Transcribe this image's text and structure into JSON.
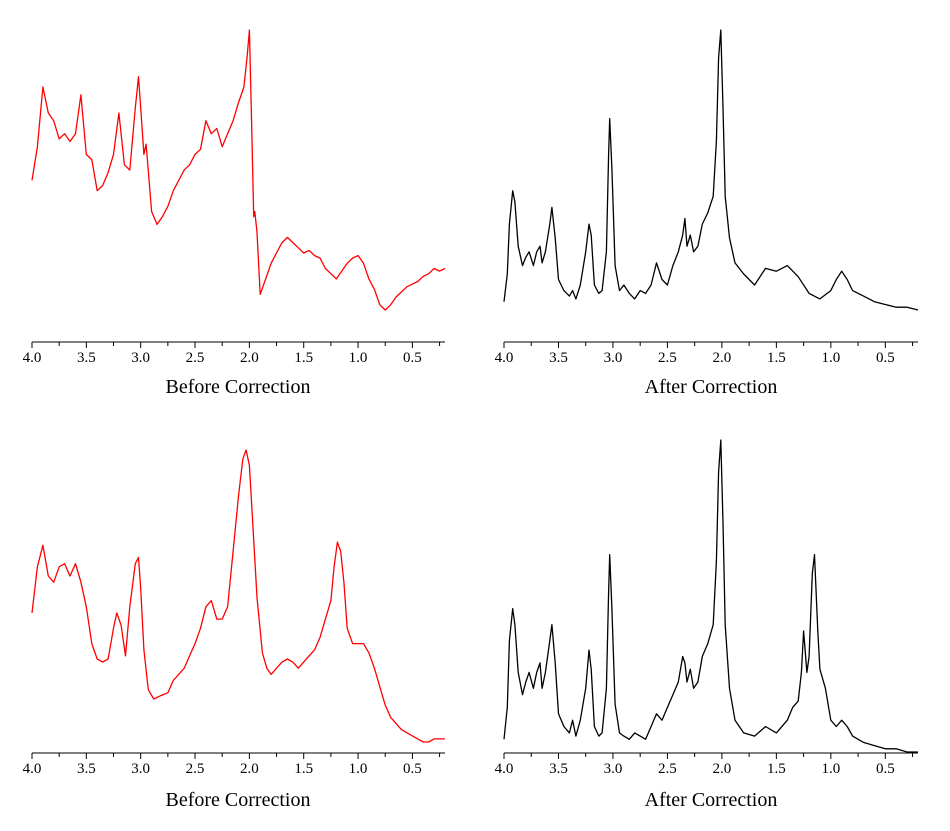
{
  "chart_data": [
    {
      "type": "line",
      "xlabel": "Before Correction",
      "ylabel": "",
      "xlim": [
        4.0,
        0.2
      ],
      "x_reversed": true,
      "xticks": [
        "4.0",
        "3.5",
        "3.0",
        "2.5",
        "2.0",
        "1.5",
        "1.0",
        "0.5"
      ],
      "y_axis_visible": false,
      "grid": false,
      "series": [
        {
          "color": "#ff0000",
          "x": [
            4.0,
            3.95,
            3.9,
            3.85,
            3.8,
            3.75,
            3.7,
            3.65,
            3.6,
            3.55,
            3.5,
            3.45,
            3.4,
            3.35,
            3.3,
            3.25,
            3.2,
            3.15,
            3.1,
            3.05,
            3.02,
            3.0,
            2.97,
            2.95,
            2.9,
            2.85,
            2.8,
            2.75,
            2.7,
            2.65,
            2.6,
            2.55,
            2.5,
            2.45,
            2.4,
            2.35,
            2.3,
            2.25,
            2.2,
            2.15,
            2.1,
            2.05,
            2.02,
            2.0,
            1.98,
            1.96,
            1.95,
            1.93,
            1.9,
            1.85,
            1.8,
            1.75,
            1.7,
            1.65,
            1.6,
            1.55,
            1.5,
            1.45,
            1.4,
            1.35,
            1.3,
            1.25,
            1.2,
            1.15,
            1.1,
            1.05,
            1.0,
            0.95,
            0.9,
            0.85,
            0.8,
            0.75,
            0.7,
            0.65,
            0.6,
            0.55,
            0.5,
            0.45,
            0.4,
            0.35,
            0.3,
            0.25,
            0.2
          ],
          "y": [
            0.62,
            0.75,
            0.98,
            0.88,
            0.85,
            0.78,
            0.8,
            0.77,
            0.8,
            0.95,
            0.72,
            0.7,
            0.58,
            0.6,
            0.65,
            0.72,
            0.88,
            0.68,
            0.66,
            0.9,
            1.02,
            0.9,
            0.72,
            0.76,
            0.5,
            0.45,
            0.48,
            0.52,
            0.58,
            0.62,
            0.66,
            0.68,
            0.72,
            0.74,
            0.85,
            0.8,
            0.82,
            0.75,
            0.8,
            0.85,
            0.92,
            0.98,
            1.1,
            1.2,
            0.86,
            0.48,
            0.5,
            0.42,
            0.18,
            0.24,
            0.3,
            0.34,
            0.38,
            0.4,
            0.38,
            0.36,
            0.34,
            0.35,
            0.33,
            0.32,
            0.28,
            0.26,
            0.24,
            0.27,
            0.3,
            0.32,
            0.33,
            0.3,
            0.24,
            0.2,
            0.14,
            0.12,
            0.14,
            0.17,
            0.19,
            0.21,
            0.22,
            0.23,
            0.25,
            0.26,
            0.28,
            0.27,
            0.28
          ]
        }
      ]
    },
    {
      "type": "line",
      "xlabel": "After Correction",
      "ylabel": "",
      "xlim": [
        4.0,
        0.2
      ],
      "x_reversed": true,
      "xticks": [
        "4.0",
        "3.5",
        "3.0",
        "2.5",
        "2.0",
        "1.5",
        "1.0",
        "0.5"
      ],
      "y_axis_visible": false,
      "grid": false,
      "series": [
        {
          "color": "#000000",
          "x": [
            4.0,
            3.97,
            3.95,
            3.92,
            3.9,
            3.87,
            3.83,
            3.8,
            3.77,
            3.73,
            3.7,
            3.67,
            3.65,
            3.62,
            3.58,
            3.56,
            3.53,
            3.5,
            3.45,
            3.4,
            3.37,
            3.34,
            3.3,
            3.25,
            3.22,
            3.2,
            3.17,
            3.13,
            3.1,
            3.06,
            3.04,
            3.03,
            3.01,
            2.98,
            2.94,
            2.9,
            2.85,
            2.8,
            2.75,
            2.7,
            2.65,
            2.6,
            2.55,
            2.5,
            2.45,
            2.4,
            2.36,
            2.34,
            2.32,
            2.29,
            2.26,
            2.22,
            2.18,
            2.13,
            2.08,
            2.05,
            2.03,
            2.01,
            1.99,
            1.97,
            1.93,
            1.88,
            1.8,
            1.7,
            1.6,
            1.5,
            1.4,
            1.3,
            1.2,
            1.1,
            1.0,
            0.95,
            0.9,
            0.85,
            0.8,
            0.7,
            0.6,
            0.5,
            0.4,
            0.3,
            0.2
          ],
          "y": [
            0.02,
            0.12,
            0.3,
            0.42,
            0.38,
            0.22,
            0.15,
            0.18,
            0.2,
            0.15,
            0.2,
            0.22,
            0.16,
            0.2,
            0.3,
            0.36,
            0.25,
            0.1,
            0.06,
            0.04,
            0.06,
            0.03,
            0.08,
            0.2,
            0.3,
            0.26,
            0.08,
            0.05,
            0.06,
            0.2,
            0.55,
            0.68,
            0.5,
            0.15,
            0.06,
            0.08,
            0.05,
            0.03,
            0.06,
            0.05,
            0.08,
            0.16,
            0.1,
            0.08,
            0.15,
            0.2,
            0.26,
            0.32,
            0.22,
            0.26,
            0.2,
            0.22,
            0.3,
            0.34,
            0.4,
            0.6,
            0.9,
            1.0,
            0.72,
            0.4,
            0.25,
            0.16,
            0.12,
            0.08,
            0.14,
            0.13,
            0.15,
            0.11,
            0.05,
            0.03,
            0.06,
            0.1,
            0.13,
            0.1,
            0.06,
            0.04,
            0.02,
            0.01,
            0.0,
            0.0,
            -0.01
          ]
        }
      ]
    },
    {
      "type": "line",
      "xlabel": "Before Correction",
      "ylabel": "",
      "xlim": [
        4.0,
        0.2
      ],
      "x_reversed": true,
      "xticks": [
        "4.0",
        "3.5",
        "3.0",
        "2.5",
        "2.0",
        "1.5",
        "1.0",
        "0.5"
      ],
      "y_axis_visible": false,
      "grid": false,
      "series": [
        {
          "color": "#ff0000",
          "x": [
            4.0,
            3.95,
            3.9,
            3.85,
            3.8,
            3.75,
            3.7,
            3.65,
            3.6,
            3.55,
            3.5,
            3.45,
            3.4,
            3.35,
            3.3,
            3.25,
            3.22,
            3.18,
            3.14,
            3.1,
            3.05,
            3.02,
            3.0,
            2.97,
            2.93,
            2.88,
            2.82,
            2.75,
            2.7,
            2.65,
            2.6,
            2.55,
            2.5,
            2.45,
            2.4,
            2.35,
            2.3,
            2.25,
            2.2,
            2.15,
            2.1,
            2.06,
            2.03,
            2.0,
            1.97,
            1.93,
            1.88,
            1.84,
            1.8,
            1.75,
            1.7,
            1.65,
            1.6,
            1.55,
            1.5,
            1.45,
            1.4,
            1.35,
            1.3,
            1.25,
            1.22,
            1.19,
            1.16,
            1.13,
            1.1,
            1.05,
            1.0,
            0.95,
            0.9,
            0.85,
            0.8,
            0.75,
            0.7,
            0.65,
            0.6,
            0.55,
            0.5,
            0.45,
            0.4,
            0.35,
            0.3,
            0.25,
            0.2
          ],
          "y": [
            0.4,
            0.55,
            0.62,
            0.52,
            0.5,
            0.55,
            0.56,
            0.52,
            0.56,
            0.5,
            0.42,
            0.3,
            0.25,
            0.24,
            0.25,
            0.35,
            0.4,
            0.36,
            0.26,
            0.42,
            0.56,
            0.58,
            0.48,
            0.28,
            0.15,
            0.12,
            0.13,
            0.14,
            0.18,
            0.2,
            0.22,
            0.26,
            0.3,
            0.35,
            0.42,
            0.44,
            0.38,
            0.38,
            0.42,
            0.6,
            0.78,
            0.9,
            0.93,
            0.88,
            0.7,
            0.45,
            0.27,
            0.22,
            0.2,
            0.22,
            0.24,
            0.25,
            0.24,
            0.22,
            0.24,
            0.26,
            0.28,
            0.32,
            0.38,
            0.44,
            0.55,
            0.63,
            0.6,
            0.5,
            0.35,
            0.3,
            0.3,
            0.3,
            0.27,
            0.22,
            0.16,
            0.1,
            0.06,
            0.04,
            0.02,
            0.01,
            0.0,
            -0.01,
            -0.02,
            -0.02,
            -0.01,
            -0.01,
            -0.01
          ]
        }
      ]
    },
    {
      "type": "line",
      "xlabel": "After Correction",
      "ylabel": "",
      "xlim": [
        4.0,
        0.2
      ],
      "x_reversed": true,
      "xticks": [
        "4.0",
        "3.5",
        "3.0",
        "2.5",
        "2.0",
        "1.5",
        "1.0",
        "0.5"
      ],
      "y_axis_visible": false,
      "grid": false,
      "series": [
        {
          "color": "#000000",
          "x": [
            4.0,
            3.97,
            3.95,
            3.92,
            3.9,
            3.87,
            3.83,
            3.8,
            3.77,
            3.73,
            3.7,
            3.67,
            3.65,
            3.62,
            3.58,
            3.56,
            3.53,
            3.5,
            3.45,
            3.4,
            3.37,
            3.34,
            3.3,
            3.25,
            3.22,
            3.2,
            3.17,
            3.13,
            3.1,
            3.06,
            3.04,
            3.03,
            3.01,
            2.98,
            2.94,
            2.9,
            2.85,
            2.8,
            2.75,
            2.7,
            2.65,
            2.6,
            2.55,
            2.5,
            2.45,
            2.4,
            2.36,
            2.34,
            2.32,
            2.29,
            2.26,
            2.22,
            2.18,
            2.13,
            2.08,
            2.05,
            2.03,
            2.01,
            1.99,
            1.97,
            1.93,
            1.88,
            1.8,
            1.7,
            1.6,
            1.5,
            1.4,
            1.35,
            1.3,
            1.27,
            1.25,
            1.22,
            1.2,
            1.17,
            1.15,
            1.12,
            1.1,
            1.05,
            1.0,
            0.95,
            0.9,
            0.85,
            0.8,
            0.7,
            0.6,
            0.5,
            0.4,
            0.3,
            0.2
          ],
          "y": [
            0.04,
            0.14,
            0.35,
            0.45,
            0.4,
            0.25,
            0.18,
            0.22,
            0.25,
            0.2,
            0.25,
            0.28,
            0.2,
            0.25,
            0.35,
            0.4,
            0.28,
            0.12,
            0.08,
            0.06,
            0.1,
            0.05,
            0.1,
            0.2,
            0.32,
            0.26,
            0.08,
            0.05,
            0.06,
            0.2,
            0.5,
            0.62,
            0.45,
            0.15,
            0.06,
            0.05,
            0.04,
            0.06,
            0.05,
            0.04,
            0.08,
            0.12,
            0.1,
            0.14,
            0.18,
            0.22,
            0.3,
            0.28,
            0.22,
            0.26,
            0.2,
            0.22,
            0.3,
            0.34,
            0.4,
            0.6,
            0.88,
            0.98,
            0.72,
            0.4,
            0.2,
            0.1,
            0.06,
            0.05,
            0.08,
            0.06,
            0.1,
            0.14,
            0.16,
            0.25,
            0.38,
            0.25,
            0.3,
            0.56,
            0.62,
            0.38,
            0.26,
            0.2,
            0.1,
            0.08,
            0.1,
            0.08,
            0.05,
            0.03,
            0.02,
            0.01,
            0.01,
            0.0,
            0.0
          ]
        }
      ]
    }
  ]
}
